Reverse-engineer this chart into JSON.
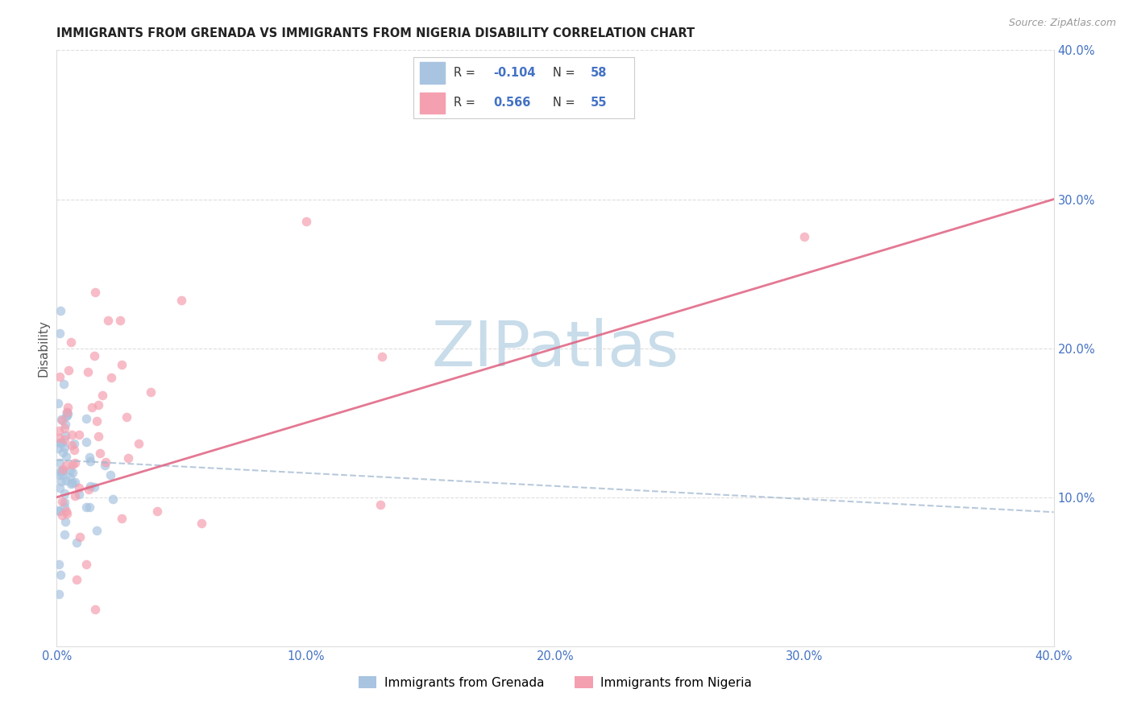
{
  "title": "IMMIGRANTS FROM GRENADA VS IMMIGRANTS FROM NIGERIA DISABILITY CORRELATION CHART",
  "source": "Source: ZipAtlas.com",
  "ylabel": "Disability",
  "xlim": [
    0.0,
    0.4
  ],
  "ylim": [
    0.0,
    0.4
  ],
  "xtick_vals": [
    0.0,
    0.1,
    0.2,
    0.3,
    0.4
  ],
  "ytick_right_vals": [
    0.1,
    0.2,
    0.3,
    0.4
  ],
  "series": [
    {
      "name": "Immigrants from Grenada",
      "color": "#a8c4e0",
      "R": -0.104,
      "N": 58
    },
    {
      "name": "Immigrants from Nigeria",
      "color": "#f4a0b0",
      "R": 0.566,
      "N": 55
    }
  ],
  "grenada_trend_color": "#a0b8d0",
  "nigeria_trend_color": "#e06080",
  "watermark": "ZIPatlas",
  "watermark_color": "#c8dcea",
  "background_color": "#ffffff",
  "grid_color": "#dddddd",
  "title_fontsize": 10.5,
  "axis_label_color": "#4472c4",
  "legend_R_color": "#4472c4",
  "legend_text_color": "#333333",
  "source_color": "#999999"
}
